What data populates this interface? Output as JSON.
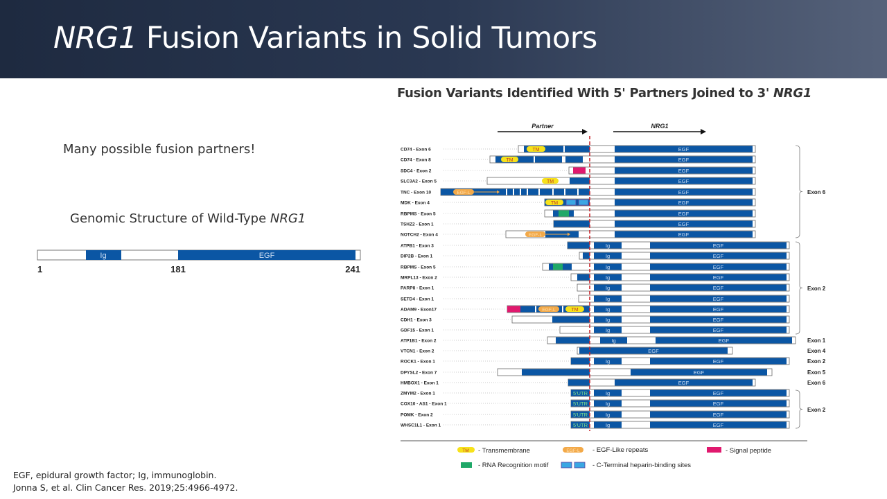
{
  "header": {
    "title_italic": "NRG1",
    "title_rest": " Fusion Variants in Solid Tumors"
  },
  "left": {
    "callout": "Many possible fusion partners!",
    "genomic_title": "Genomic Structure of Wild-Type ",
    "genomic_title_italic": "NRG1",
    "wt_ticks": [
      "1",
      "181",
      "241"
    ],
    "wt_domains": {
      "ig": "Ig",
      "egf": "EGF"
    }
  },
  "figure": {
    "title": "Fusion Variants Identified With 5' Partners Joined to 3' ",
    "title_italic": "NRG1",
    "partner_label": "Partner",
    "nrg1_label": "NRG1",
    "domain_labels": {
      "tm": "TM",
      "egfl": "EGF-L",
      "egf": "EGF",
      "ig": "Ig",
      "utr": "5'UTR"
    },
    "rows": [
      {
        "label": "CD74 - Exon 6"
      },
      {
        "label": "CD74 - Exon 8"
      },
      {
        "label": "SDC4 - Exon 2"
      },
      {
        "label": "SLC3A2 - Exon 5"
      },
      {
        "label": "TNC - Exon 10"
      },
      {
        "label": "MDK - Exon 4"
      },
      {
        "label": "RBPMS - Exon 5"
      },
      {
        "label": "TSHZ2 - Exon 1"
      },
      {
        "label": "NOTCH2 - Exon 4"
      },
      {
        "label": "ATPB1 - Exon 3"
      },
      {
        "label": "DIP2B - Exon 1"
      },
      {
        "label": "RBPMS - Exon 5"
      },
      {
        "label": "MRPL13 - Exon 2"
      },
      {
        "label": "PARP8 - Exon 1"
      },
      {
        "label": "SETD4 - Exon 1"
      },
      {
        "label": "ADAM9 - Exon17"
      },
      {
        "label": "CDH1 - Exon 3"
      },
      {
        "label": "GDF15 - Exon 1"
      },
      {
        "label": "ATP1B1 - Exon 2"
      },
      {
        "label": "VTCN1 - Exon 2"
      },
      {
        "label": "ROCK1 - Exon 1"
      },
      {
        "label": "DPYSL2 - Exon 7"
      },
      {
        "label": "HMBOX1 - Exon 1"
      },
      {
        "label": "ZMYM2 - Exon 1"
      },
      {
        "label": "COX10 - AS1 - Exon 1"
      },
      {
        "label": "POMK - Exon 2"
      },
      {
        "label": "WHSC1L1 - Exon 1"
      }
    ],
    "exon_groups": [
      "Exon 6",
      "Exon 2",
      "Exon 1",
      "Exon 4",
      "Exon 2",
      "Exon 5",
      "Exon 6",
      "Exon 2"
    ],
    "legend": {
      "tm": "- Transmembrane",
      "egfl": "- EGF-Like repeats",
      "signal": "- Signal peptide",
      "rrm": "- RNA Recognition motif",
      "heparin": "- C-Terminal heparin-binding sites"
    },
    "colors": {
      "blue": "#0b56a4",
      "pink": "#e0196e",
      "green": "#1fa868",
      "yellow": "#f7e21a",
      "orange": "#f3a948",
      "lightblue": "#3aa7e3",
      "dashed": "#c8262c"
    }
  },
  "footnotes": [
    "EGF, epidural growth factor; Ig, immunoglobin.",
    "Jonna S, et al. Clin Cancer Res. 2019;25:4966-4972."
  ]
}
